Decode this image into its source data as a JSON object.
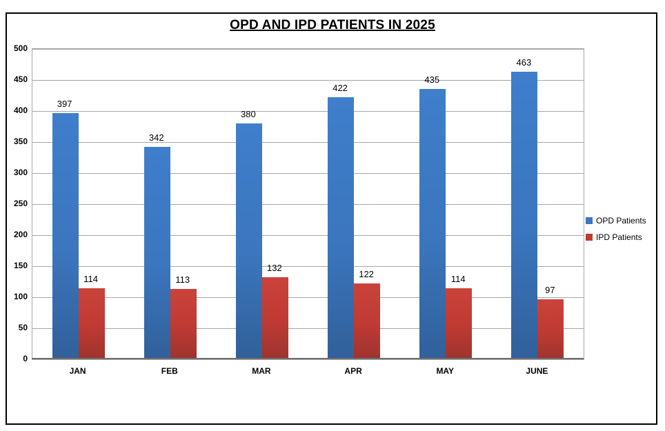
{
  "chart_data": {
    "type": "bar",
    "title": "OPD AND IPD PATIENTS IN 2025",
    "categories": [
      "JAN",
      "FEB",
      "MAR",
      "APR",
      "MAY",
      "JUNE"
    ],
    "series": [
      {
        "name": "OPD Patients",
        "values": [
          397,
          342,
          380,
          422,
          435,
          463
        ],
        "color": "#3b76be",
        "color_top": "#3f7ecb",
        "color_bottom": "#31609a"
      },
      {
        "name": "IPD Patients",
        "values": [
          114,
          113,
          132,
          122,
          114,
          97
        ],
        "color": "#be3a33",
        "color_top": "#ca433b",
        "color_bottom": "#9e342e"
      }
    ],
    "xlabel": "",
    "ylabel": "",
    "ylim": [
      0,
      500
    ],
    "yticks": [
      0,
      50,
      100,
      150,
      200,
      250,
      300,
      350,
      400,
      450,
      500
    ],
    "grid": true,
    "data_labels": true,
    "legend_position": "right"
  },
  "colors": {
    "grid": "#a6a6a6",
    "axis_line": "#6e6e6e",
    "text": "#000000",
    "background": "#ffffff",
    "border": "#000000"
  }
}
